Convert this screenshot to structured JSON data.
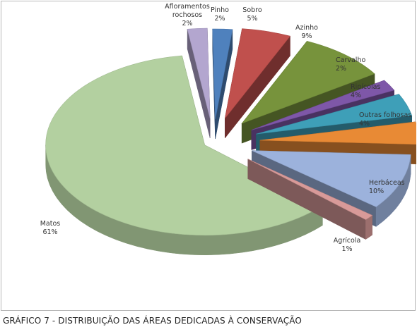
{
  "caption": "GRÁFICO 7 - DISTRIBUIÇÃO DAS ÁREAS DEDICADAS À CONSERVAÇÃO",
  "chart_data": {
    "type": "pie",
    "style": "3d-exploded",
    "title": "",
    "slices": [
      {
        "name": "Pinho",
        "label_lines": [
          "Pinho",
          "2%"
        ],
        "value": 2,
        "color": "#4f81bd"
      },
      {
        "name": "Sobro",
        "label_lines": [
          "Sobro",
          "5%"
        ],
        "value": 5,
        "color": "#c0504d"
      },
      {
        "name": "Azinho",
        "label_lines": [
          "Azinho",
          "9%"
        ],
        "value": 9,
        "color": "#77933c"
      },
      {
        "name": "Carvalho",
        "label_lines": [
          "Carvalho",
          "2%"
        ],
        "value": 2,
        "color": "#7e57a8"
      },
      {
        "name": "Ripícolas",
        "label_lines": [
          "Ripícolas",
          "4%"
        ],
        "value": 4,
        "color": "#3e9fb8"
      },
      {
        "name": "Outras folhosas",
        "label_lines": [
          "Outras folhosas",
          "4%"
        ],
        "value": 4,
        "color": "#e88a35"
      },
      {
        "name": "Herbáceas",
        "label_lines": [
          "Herbáceas",
          "10%"
        ],
        "value": 10,
        "color": "#9cb2dc"
      },
      {
        "name": "Agrícola",
        "label_lines": [
          "Agrícola",
          "1%"
        ],
        "value": 1,
        "color": "#d89a99"
      },
      {
        "name": "Matos",
        "label_lines": [
          "Matos",
          "61%"
        ],
        "value": 61,
        "color": "#b3d0a0"
      },
      {
        "name": "Afloramentos rochosos",
        "label_lines": [
          "Afloramentos",
          "rochosos",
          "2%"
        ],
        "value": 2,
        "color": "#b3a6cf"
      }
    ],
    "legend": "none",
    "data_labels": "outside"
  }
}
